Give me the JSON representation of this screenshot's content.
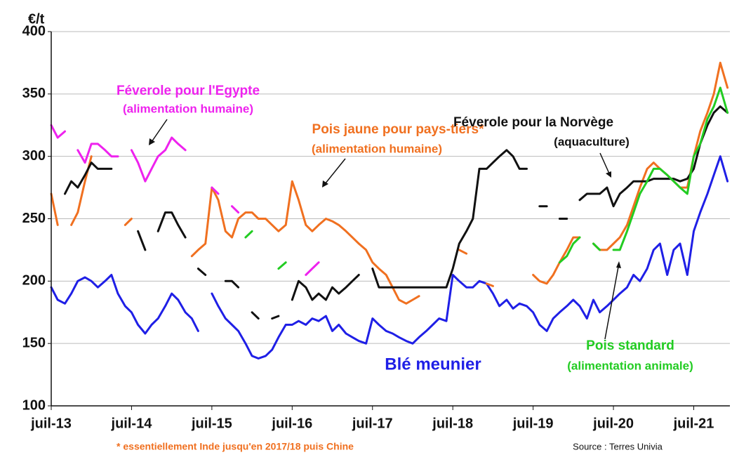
{
  "chart_data": {
    "type": "line",
    "y_unit": "€/t",
    "x": [
      2013.5,
      2013.58,
      2013.67,
      2013.75,
      2013.83,
      2013.92,
      2014,
      2014.08,
      2014.17,
      2014.25,
      2014.33,
      2014.42,
      2014.5,
      2014.58,
      2014.67,
      2014.75,
      2014.83,
      2014.92,
      2015,
      2015.08,
      2015.17,
      2015.25,
      2015.33,
      2015.42,
      2015.5,
      2015.58,
      2015.67,
      2015.75,
      2015.83,
      2015.92,
      2016,
      2016.08,
      2016.17,
      2016.25,
      2016.33,
      2016.42,
      2016.5,
      2016.58,
      2016.67,
      2016.75,
      2016.83,
      2016.92,
      2017,
      2017.08,
      2017.17,
      2017.25,
      2017.33,
      2017.42,
      2017.5,
      2017.58,
      2017.67,
      2017.75,
      2017.83,
      2017.92,
      2018,
      2018.08,
      2018.17,
      2018.25,
      2018.33,
      2018.42,
      2018.5,
      2018.58,
      2018.67,
      2018.75,
      2018.83,
      2018.92,
      2019,
      2019.08,
      2019.17,
      2019.25,
      2019.33,
      2019.42,
      2019.5,
      2019.58,
      2019.67,
      2019.75,
      2019.83,
      2019.92,
      2020,
      2020.08,
      2020.17,
      2020.25,
      2020.33,
      2020.42,
      2020.5,
      2020.58,
      2020.67,
      2020.75,
      2020.83,
      2020.92,
      2021,
      2021.08,
      2021.17,
      2021.25,
      2021.33,
      2021.42,
      2021.5,
      2021.58,
      2021.67,
      2021.75,
      2021.83,
      2021.92
    ],
    "series": [
      {
        "name": "Blé meunier",
        "color": "#1f1fe6",
        "values": [
          195,
          185,
          182,
          190,
          200,
          203,
          200,
          195,
          200,
          205,
          190,
          180,
          175,
          165,
          158,
          165,
          170,
          180,
          190,
          185,
          175,
          170,
          160,
          null,
          190,
          180,
          170,
          165,
          160,
          150,
          140,
          138,
          140,
          145,
          155,
          165,
          165,
          168,
          165,
          170,
          168,
          172,
          160,
          165,
          158,
          155,
          152,
          150,
          170,
          165,
          160,
          158,
          155,
          152,
          150,
          155,
          160,
          165,
          170,
          168,
          205,
          200,
          195,
          195,
          200,
          198,
          190,
          180,
          185,
          178,
          182,
          180,
          175,
          165,
          160,
          170,
          175,
          180,
          185,
          180,
          170,
          185,
          175,
          180,
          185,
          190,
          195,
          205,
          200,
          210,
          225,
          230,
          205,
          225,
          230,
          205,
          240,
          255,
          270,
          285,
          300,
          280
        ]
      },
      {
        "name": "Pois jaune pour pays-tiers*",
        "detail": "(alimentation humaine)",
        "color": "#f07020",
        "values": [
          270,
          245,
          null,
          245,
          255,
          280,
          300,
          null,
          null,
          null,
          null,
          245,
          250,
          null,
          null,
          null,
          null,
          null,
          null,
          null,
          null,
          220,
          225,
          230,
          275,
          265,
          240,
          235,
          250,
          255,
          255,
          250,
          250,
          245,
          240,
          245,
          280,
          265,
          245,
          240,
          245,
          250,
          248,
          245,
          240,
          235,
          230,
          225,
          215,
          210,
          205,
          195,
          185,
          182,
          185,
          188,
          null,
          null,
          null,
          null,
          null,
          225,
          222,
          null,
          null,
          198,
          196,
          null,
          null,
          null,
          null,
          null,
          205,
          200,
          198,
          205,
          215,
          225,
          235,
          235,
          null,
          230,
          225,
          225,
          230,
          235,
          245,
          260,
          275,
          290,
          295,
          290,
          285,
          280,
          275,
          275,
          300,
          320,
          335,
          350,
          375,
          355
        ]
      },
      {
        "name": "Féverole pour la Norvège",
        "detail": "(aquaculture)",
        "color": "#111111",
        "values": [
          null,
          null,
          270,
          280,
          275,
          285,
          295,
          290,
          290,
          290,
          null,
          null,
          null,
          240,
          225,
          null,
          240,
          255,
          255,
          245,
          235,
          null,
          210,
          205,
          null,
          null,
          200,
          200,
          195,
          null,
          175,
          170,
          null,
          170,
          172,
          null,
          185,
          200,
          195,
          185,
          190,
          185,
          195,
          190,
          195,
          200,
          205,
          null,
          210,
          195,
          195,
          195,
          195,
          195,
          195,
          195,
          195,
          195,
          195,
          195,
          210,
          230,
          240,
          250,
          290,
          290,
          295,
          300,
          305,
          300,
          290,
          290,
          null,
          260,
          260,
          null,
          250,
          250,
          null,
          265,
          270,
          270,
          270,
          275,
          260,
          270,
          275,
          280,
          280,
          280,
          282,
          282,
          282,
          282,
          280,
          282,
          290,
          310,
          325,
          335,
          340,
          335
        ]
      },
      {
        "name": "Pois standard",
        "detail": "(alimentation animale)",
        "color": "#22cc22",
        "values": [
          null,
          null,
          null,
          null,
          null,
          null,
          null,
          null,
          null,
          null,
          null,
          null,
          null,
          null,
          null,
          null,
          null,
          null,
          null,
          null,
          null,
          null,
          null,
          null,
          null,
          null,
          null,
          null,
          null,
          235,
          240,
          null,
          null,
          null,
          210,
          215,
          null,
          null,
          null,
          null,
          null,
          null,
          null,
          null,
          null,
          null,
          null,
          null,
          null,
          null,
          null,
          null,
          null,
          null,
          null,
          null,
          null,
          null,
          null,
          null,
          null,
          null,
          null,
          null,
          null,
          null,
          null,
          null,
          null,
          null,
          null,
          null,
          null,
          null,
          null,
          null,
          215,
          220,
          230,
          235,
          null,
          230,
          225,
          null,
          225,
          225,
          240,
          255,
          270,
          280,
          290,
          290,
          285,
          280,
          275,
          270,
          300,
          310,
          330,
          340,
          355,
          335
        ]
      },
      {
        "name": "Féverole pour l'Egypte",
        "detail": "(alimentation humaine)",
        "color": "#ee22ee",
        "values": [
          325,
          315,
          320,
          null,
          305,
          295,
          310,
          310,
          305,
          300,
          300,
          null,
          305,
          295,
          280,
          290,
          300,
          305,
          315,
          310,
          305,
          null,
          null,
          null,
          275,
          270,
          null,
          260,
          255,
          null,
          null,
          null,
          null,
          null,
          null,
          null,
          null,
          null,
          205,
          210,
          215,
          null,
          null,
          null,
          null,
          null,
          null,
          null,
          null,
          null,
          null,
          null,
          null,
          null,
          null,
          null,
          null,
          null,
          null,
          null,
          null,
          null,
          null,
          null,
          null,
          null,
          null,
          null,
          null,
          null,
          null,
          null,
          null,
          null,
          null,
          null,
          null,
          null,
          null,
          null,
          null,
          null,
          null,
          null,
          null,
          null,
          null,
          null,
          null,
          null,
          null,
          null,
          null,
          null,
          null,
          null,
          null,
          null,
          null,
          null,
          null,
          null
        ]
      }
    ],
    "xlim": [
      2013.5,
      2021.95
    ],
    "xticks": [
      {
        "value": 2013.5,
        "label": "juil-13"
      },
      {
        "value": 2014.5,
        "label": "juil-14"
      },
      {
        "value": 2015.5,
        "label": "juil-15"
      },
      {
        "value": 2016.5,
        "label": "juil-16"
      },
      {
        "value": 2017.5,
        "label": "juil-17"
      },
      {
        "value": 2018.5,
        "label": "juil-18"
      },
      {
        "value": 2019.5,
        "label": "juil-19"
      },
      {
        "value": 2020.5,
        "label": "juil-20"
      },
      {
        "value": 2021.5,
        "label": "juil-21"
      }
    ],
    "ylim": [
      100,
      400
    ],
    "yticks": [
      100,
      150,
      200,
      250,
      300,
      350,
      400
    ],
    "grid": true,
    "footnote": "* essentiellement Inde jusqu'en 2017/18 puis Chine",
    "source": "Source : Terres Univia"
  }
}
